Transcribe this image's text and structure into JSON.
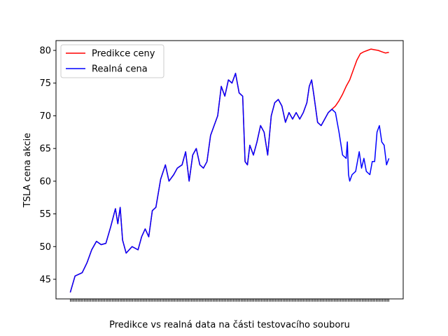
{
  "chart_data": {
    "type": "line",
    "title": "",
    "xlabel": "Predikce vs realná data na části testovacího souboru",
    "ylabel": "TSLA cena akcie",
    "ylim": [
      42,
      81.5
    ],
    "yticks": [
      45,
      50,
      55,
      60,
      65,
      70,
      75,
      80
    ],
    "x_count": 251,
    "grid": false,
    "legend": {
      "position": "top-left"
    },
    "series": [
      {
        "name": "Predikce ceny",
        "color": "#ff0000",
        "points": [
          [
            0,
            43
          ],
          [
            4,
            45.5
          ],
          [
            10,
            46
          ],
          [
            14,
            47.5
          ],
          [
            18,
            49.5
          ],
          [
            22,
            50.8
          ],
          [
            26,
            50.3
          ],
          [
            30,
            50.5
          ],
          [
            34,
            53
          ],
          [
            38,
            55.8
          ],
          [
            40,
            53.5
          ],
          [
            42,
            56
          ],
          [
            44,
            51
          ],
          [
            47,
            49
          ],
          [
            52,
            50
          ],
          [
            57,
            49.5
          ],
          [
            60,
            51.5
          ],
          [
            63,
            52.7
          ],
          [
            66,
            51.5
          ],
          [
            69,
            55.5
          ],
          [
            72,
            56
          ],
          [
            76,
            60.3
          ],
          [
            80,
            62.5
          ],
          [
            83,
            60
          ],
          [
            87,
            61
          ],
          [
            90,
            62
          ],
          [
            94,
            62.5
          ],
          [
            97,
            64.5
          ],
          [
            100,
            60
          ],
          [
            103,
            64
          ],
          [
            106,
            65
          ],
          [
            109,
            62.5
          ],
          [
            112,
            62
          ],
          [
            115,
            63
          ],
          [
            118,
            67
          ],
          [
            121,
            68.5
          ],
          [
            124,
            70
          ],
          [
            127,
            74.5
          ],
          [
            130,
            73
          ],
          [
            133,
            75.5
          ],
          [
            136,
            75
          ],
          [
            139,
            76.5
          ],
          [
            142,
            73.5
          ],
          [
            145,
            73
          ],
          [
            147,
            63
          ],
          [
            149,
            62.5
          ],
          [
            151,
            65.5
          ],
          [
            154,
            64
          ],
          [
            157,
            66
          ],
          [
            160,
            68.5
          ],
          [
            163,
            67.5
          ],
          [
            166,
            64
          ],
          [
            169,
            70
          ],
          [
            172,
            72
          ],
          [
            175,
            72.5
          ],
          [
            178,
            71.5
          ],
          [
            181,
            69
          ],
          [
            184,
            70.5
          ],
          [
            187,
            69.5
          ],
          [
            190,
            70.5
          ],
          [
            193,
            69.5
          ],
          [
            196,
            70.5
          ],
          [
            199,
            72
          ],
          [
            201,
            74.5
          ],
          [
            203,
            75.5
          ],
          [
            205,
            73
          ],
          [
            208,
            69
          ],
          [
            211,
            68.5
          ],
          [
            214,
            69.5
          ],
          [
            217,
            70.5
          ],
          [
            220,
            71
          ],
          [
            223,
            71.5
          ],
          [
            226,
            72.3
          ],
          [
            229,
            73.3
          ],
          [
            232,
            74.5
          ],
          [
            235,
            75.5
          ],
          [
            238,
            77
          ],
          [
            241,
            78.5
          ],
          [
            244,
            79.5
          ],
          [
            247,
            79.8
          ],
          [
            250,
            80
          ],
          [
            253,
            80.2
          ],
          [
            256,
            80.1
          ],
          [
            259,
            80
          ],
          [
            262,
            79.8
          ],
          [
            265,
            79.6
          ],
          [
            268,
            79.7
          ]
        ]
      },
      {
        "name": "Realná cena",
        "color": "#0000ff",
        "points": [
          [
            0,
            43
          ],
          [
            4,
            45.5
          ],
          [
            10,
            46
          ],
          [
            14,
            47.5
          ],
          [
            18,
            49.5
          ],
          [
            22,
            50.8
          ],
          [
            26,
            50.3
          ],
          [
            30,
            50.5
          ],
          [
            34,
            53
          ],
          [
            38,
            55.8
          ],
          [
            40,
            53.5
          ],
          [
            42,
            56
          ],
          [
            44,
            51
          ],
          [
            47,
            49
          ],
          [
            52,
            50
          ],
          [
            57,
            49.5
          ],
          [
            60,
            51.5
          ],
          [
            63,
            52.7
          ],
          [
            66,
            51.5
          ],
          [
            69,
            55.5
          ],
          [
            72,
            56
          ],
          [
            76,
            60.3
          ],
          [
            80,
            62.5
          ],
          [
            83,
            60
          ],
          [
            87,
            61
          ],
          [
            90,
            62
          ],
          [
            94,
            62.5
          ],
          [
            97,
            64.5
          ],
          [
            100,
            60
          ],
          [
            103,
            64
          ],
          [
            106,
            65
          ],
          [
            109,
            62.5
          ],
          [
            112,
            62
          ],
          [
            115,
            63
          ],
          [
            118,
            67
          ],
          [
            121,
            68.5
          ],
          [
            124,
            70
          ],
          [
            127,
            74.5
          ],
          [
            130,
            73
          ],
          [
            133,
            75.5
          ],
          [
            136,
            75
          ],
          [
            139,
            76.5
          ],
          [
            142,
            73.5
          ],
          [
            145,
            73
          ],
          [
            147,
            63
          ],
          [
            149,
            62.5
          ],
          [
            151,
            65.5
          ],
          [
            154,
            64
          ],
          [
            157,
            66
          ],
          [
            160,
            68.5
          ],
          [
            163,
            67.5
          ],
          [
            166,
            64
          ],
          [
            169,
            70
          ],
          [
            172,
            72
          ],
          [
            175,
            72.5
          ],
          [
            178,
            71.5
          ],
          [
            181,
            69
          ],
          [
            184,
            70.5
          ],
          [
            187,
            69.5
          ],
          [
            190,
            70.5
          ],
          [
            193,
            69.5
          ],
          [
            196,
            70.5
          ],
          [
            199,
            72
          ],
          [
            201,
            74.5
          ],
          [
            203,
            75.5
          ],
          [
            205,
            73
          ],
          [
            208,
            69
          ],
          [
            211,
            68.5
          ],
          [
            214,
            69.5
          ],
          [
            217,
            70.5
          ],
          [
            220,
            71
          ],
          [
            223,
            70.5
          ],
          [
            226,
            67.5
          ],
          [
            229,
            64
          ],
          [
            232,
            63.5
          ],
          [
            233,
            66
          ],
          [
            234,
            61
          ],
          [
            235,
            60
          ],
          [
            237,
            61
          ],
          [
            240,
            61.5
          ],
          [
            243,
            64.5
          ],
          [
            245,
            62
          ],
          [
            247,
            63.5
          ],
          [
            249,
            61.5
          ],
          [
            252,
            61
          ],
          [
            254,
            63
          ],
          [
            256,
            63
          ],
          [
            258,
            67.5
          ],
          [
            260,
            68.5
          ],
          [
            262,
            66
          ],
          [
            264,
            65.5
          ],
          [
            266,
            62.5
          ],
          [
            268,
            63.5
          ]
        ]
      }
    ]
  }
}
